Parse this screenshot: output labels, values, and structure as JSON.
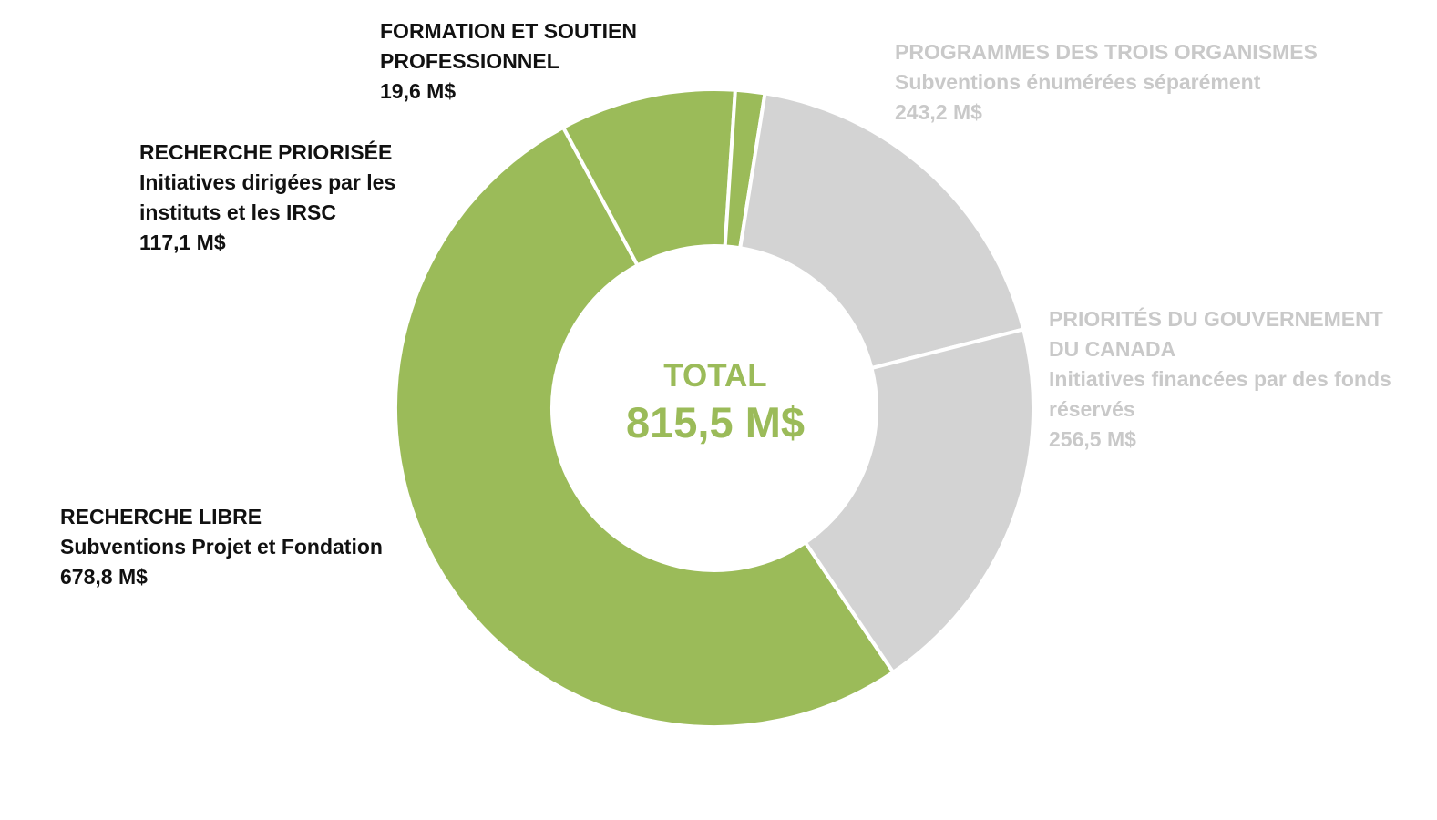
{
  "chart_data": {
    "type": "pie",
    "donut": true,
    "center": {
      "label": "TOTAL",
      "value": "815,5 M$",
      "color": "#9bbb59"
    },
    "slices": [
      {
        "title": "RECHERCHE LIBRE",
        "subtitle": "Subventions Projet et Fondation",
        "value": 678.8,
        "value_label": "678,8 M$",
        "color": "#9bbb59"
      },
      {
        "title": "RECHERCHE PRIORISÉE",
        "subtitle": "Initiatives dirigées par les instituts et les IRSC",
        "value": 117.1,
        "value_label": "117,1 M$",
        "color": "#9bbb59"
      },
      {
        "title": "FORMATION ET SOUTIEN PROFESSIONNEL",
        "subtitle": "",
        "value": 19.6,
        "value_label": "19,6 M$",
        "color": "#9bbb59"
      },
      {
        "title": "PROGRAMMES DES TROIS ORGANISMES",
        "subtitle": "Subventions énumérées séparément",
        "value": 243.2,
        "value_label": "243,2 M$",
        "color": "#d3d3d3"
      },
      {
        "title": "PRIORITÉS DU GOUVERNEMENT DU CANADA",
        "subtitle": "Initiatives financées par des fonds réservés",
        "value": 256.5,
        "value_label": "256,5 M$",
        "color": "#d3d3d3"
      }
    ]
  },
  "labels": {
    "libre": {
      "title": "RECHERCHE LIBRE",
      "subtitle": "Subventions Projet et Fondation",
      "value": "678,8 M$"
    },
    "priorisee": {
      "title": "RECHERCHE PRIORISÉE",
      "subtitle_1": "Initiatives dirigées par les",
      "subtitle_2": "instituts et les IRSC",
      "value": "117,1 M$"
    },
    "formation": {
      "title_1": "FORMATION ET SOUTIEN",
      "title_2": "PROFESSIONNEL",
      "value": "19,6 M$"
    },
    "trois": {
      "title": "PROGRAMMES DES TROIS ORGANISMES",
      "subtitle": "Subventions énumérées séparément",
      "value": "243,2 M$"
    },
    "gouvernement": {
      "title_1": "PRIORITÉS DU GOUVERNEMENT",
      "title_2": "DU CANADA",
      "subtitle_1": "Initiatives financées par des fonds",
      "subtitle_2": "réservés",
      "value": "256,5 M$"
    }
  }
}
